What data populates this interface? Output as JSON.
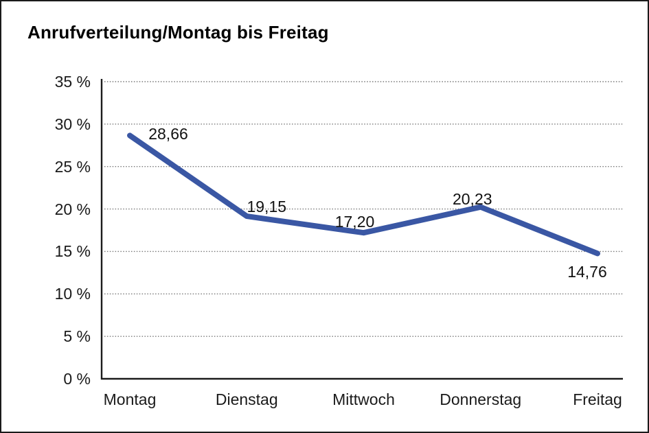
{
  "chart_data": {
    "type": "line",
    "title": "Anrufverteilung/Montag bis Freitag",
    "categories": [
      "Montag",
      "Dienstag",
      "Mittwoch",
      "Donnerstag",
      "Freitag"
    ],
    "series": [
      {
        "name": "Anrufverteilung",
        "values": [
          28.66,
          19.15,
          17.2,
          20.23,
          14.76
        ],
        "value_labels": [
          "28,66",
          "19,15",
          "17,20",
          "20,23",
          "14,76"
        ]
      }
    ],
    "unit": "%",
    "ylim": [
      0,
      35
    ],
    "y_ticks": [
      {
        "value": 0,
        "label": "0 %"
      },
      {
        "value": 5,
        "label": "5 %"
      },
      {
        "value": 10,
        "label": "10 %"
      },
      {
        "value": 15,
        "label": "15 %"
      },
      {
        "value": 20,
        "label": "20 %"
      },
      {
        "value": 25,
        "label": "25 %"
      },
      {
        "value": 30,
        "label": "30 %"
      },
      {
        "value": 35,
        "label": "35 %"
      }
    ],
    "xlabel": "",
    "ylabel": "",
    "grid": "horizontal-dotted",
    "legend_position": "none",
    "colors": {
      "series_line": "#3A57A4",
      "axis": "#1b1b1b",
      "gridline": "#777777",
      "text": "#1a1a1a",
      "background": "#ffffff",
      "frame_border": "#1b1b1b"
    }
  }
}
